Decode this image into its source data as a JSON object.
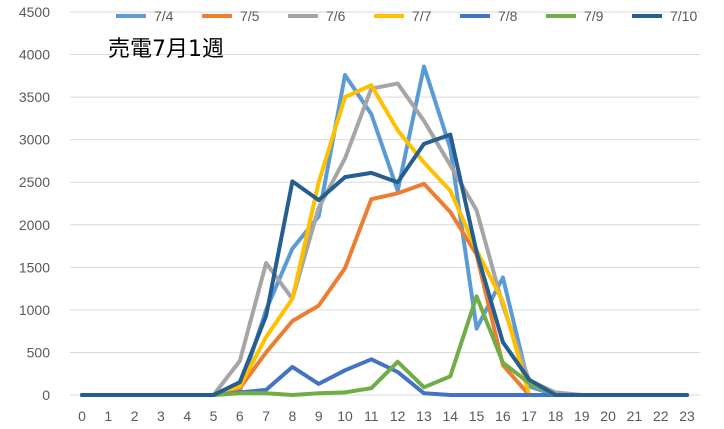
{
  "chart_data": {
    "type": "line",
    "title": "売電7月1週",
    "x": [
      "0",
      "1",
      "2",
      "3",
      "4",
      "5",
      "6",
      "7",
      "8",
      "9",
      "10",
      "11",
      "12",
      "13",
      "14",
      "15",
      "16",
      "17",
      "18",
      "19",
      "20",
      "21",
      "22",
      "23"
    ],
    "ylim": [
      0,
      4500
    ],
    "yticks": [
      "0",
      "500",
      "1000",
      "1500",
      "2000",
      "2500",
      "3000",
      "3500",
      "4000",
      "4500"
    ],
    "grid": true,
    "legend_position": "top",
    "series": [
      {
        "name": "7/4",
        "color": "#5B9BD5",
        "values": [
          0,
          0,
          0,
          0,
          0,
          0,
          50,
          1000,
          1720,
          2100,
          3760,
          3300,
          2400,
          3860,
          2900,
          780,
          1380,
          100,
          0,
          0,
          0,
          0,
          0,
          0
        ]
      },
      {
        "name": "7/5",
        "color": "#ED7D31",
        "values": [
          0,
          0,
          0,
          0,
          0,
          0,
          80,
          500,
          870,
          1050,
          1490,
          2300,
          2370,
          2480,
          2150,
          1650,
          350,
          0,
          0,
          0,
          0,
          0,
          0,
          0
        ]
      },
      {
        "name": "7/6",
        "color": "#A5A5A5",
        "values": [
          0,
          0,
          0,
          0,
          0,
          0,
          400,
          1550,
          1130,
          2200,
          2780,
          3600,
          3660,
          3220,
          2700,
          2170,
          1050,
          170,
          30,
          0,
          0,
          0,
          0,
          0
        ]
      },
      {
        "name": "7/7",
        "color": "#FFC000",
        "values": [
          0,
          0,
          0,
          0,
          0,
          0,
          100,
          680,
          1130,
          2500,
          3500,
          3640,
          3110,
          2730,
          2400,
          1700,
          1100,
          0,
          0,
          0,
          0,
          0,
          0,
          0
        ]
      },
      {
        "name": "7/8",
        "color": "#4472C4",
        "values": [
          0,
          0,
          0,
          0,
          0,
          0,
          30,
          60,
          330,
          130,
          290,
          420,
          270,
          20,
          0,
          0,
          0,
          0,
          0,
          0,
          0,
          0,
          0,
          0
        ]
      },
      {
        "name": "7/9",
        "color": "#70AD47",
        "values": [
          0,
          0,
          0,
          0,
          0,
          0,
          20,
          20,
          0,
          20,
          30,
          80,
          390,
          90,
          220,
          1160,
          380,
          140,
          0,
          0,
          0,
          0,
          0,
          0
        ]
      },
      {
        "name": "7/10",
        "color": "#255E91",
        "values": [
          0,
          0,
          0,
          0,
          0,
          0,
          150,
          930,
          2510,
          2290,
          2560,
          2610,
          2500,
          2950,
          3060,
          1680,
          620,
          180,
          0,
          0,
          0,
          0,
          0,
          0
        ]
      }
    ]
  }
}
